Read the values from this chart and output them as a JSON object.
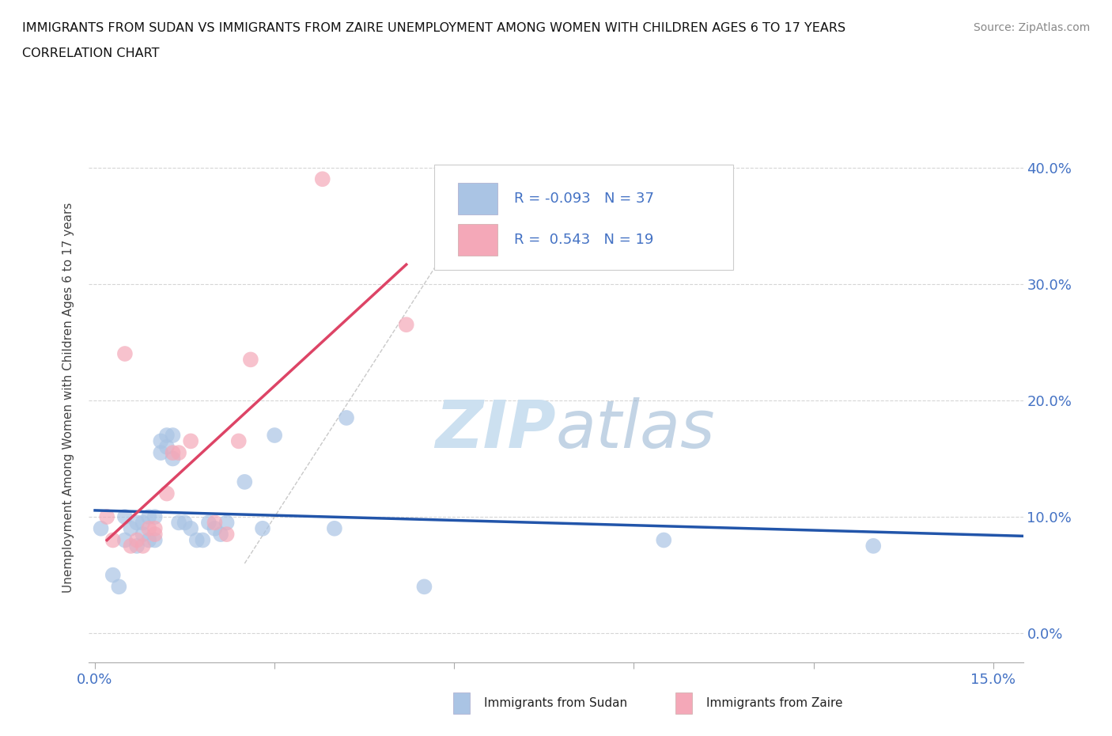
{
  "title_line1": "IMMIGRANTS FROM SUDAN VS IMMIGRANTS FROM ZAIRE UNEMPLOYMENT AMONG WOMEN WITH CHILDREN AGES 6 TO 17 YEARS",
  "title_line2": "CORRELATION CHART",
  "source": "Source: ZipAtlas.com",
  "ylabel": "Unemployment Among Women with Children Ages 6 to 17 years",
  "xlim": [
    -0.001,
    0.155
  ],
  "ylim": [
    -0.025,
    0.43
  ],
  "xticks_major": [
    0.0,
    0.15
  ],
  "xticks_minor": [
    0.03,
    0.06,
    0.09,
    0.12
  ],
  "yticks": [
    0.0,
    0.1,
    0.2,
    0.3,
    0.4
  ],
  "sudan_r": -0.093,
  "sudan_n": 37,
  "zaire_r": 0.543,
  "zaire_n": 19,
  "sudan_color": "#aac4e4",
  "zaire_color": "#f4a8b8",
  "sudan_line_color": "#2255aa",
  "zaire_line_color": "#dd4466",
  "trend_line_color": "#bbbbbb",
  "background_color": "#ffffff",
  "grid_color": "#cccccc",
  "watermark_color": "#cce0f0",
  "tick_color": "#aaaaaa",
  "label_color": "#4472c4",
  "sudan_x": [
    0.001,
    0.003,
    0.004,
    0.005,
    0.005,
    0.006,
    0.007,
    0.007,
    0.008,
    0.008,
    0.009,
    0.009,
    0.01,
    0.01,
    0.011,
    0.011,
    0.012,
    0.012,
    0.013,
    0.013,
    0.014,
    0.015,
    0.016,
    0.017,
    0.018,
    0.019,
    0.02,
    0.021,
    0.022,
    0.025,
    0.028,
    0.03,
    0.04,
    0.042,
    0.055,
    0.095,
    0.13
  ],
  "sudan_y": [
    0.09,
    0.05,
    0.04,
    0.08,
    0.1,
    0.09,
    0.095,
    0.075,
    0.095,
    0.085,
    0.1,
    0.08,
    0.1,
    0.08,
    0.155,
    0.165,
    0.16,
    0.17,
    0.17,
    0.15,
    0.095,
    0.095,
    0.09,
    0.08,
    0.08,
    0.095,
    0.09,
    0.085,
    0.095,
    0.13,
    0.09,
    0.17,
    0.09,
    0.185,
    0.04,
    0.08,
    0.075
  ],
  "zaire_x": [
    0.002,
    0.003,
    0.005,
    0.006,
    0.007,
    0.008,
    0.009,
    0.01,
    0.01,
    0.012,
    0.013,
    0.014,
    0.016,
    0.02,
    0.022,
    0.024,
    0.026,
    0.038,
    0.052
  ],
  "zaire_y": [
    0.1,
    0.08,
    0.24,
    0.075,
    0.08,
    0.075,
    0.09,
    0.085,
    0.09,
    0.12,
    0.155,
    0.155,
    0.165,
    0.095,
    0.085,
    0.165,
    0.235,
    0.39,
    0.265
  ]
}
